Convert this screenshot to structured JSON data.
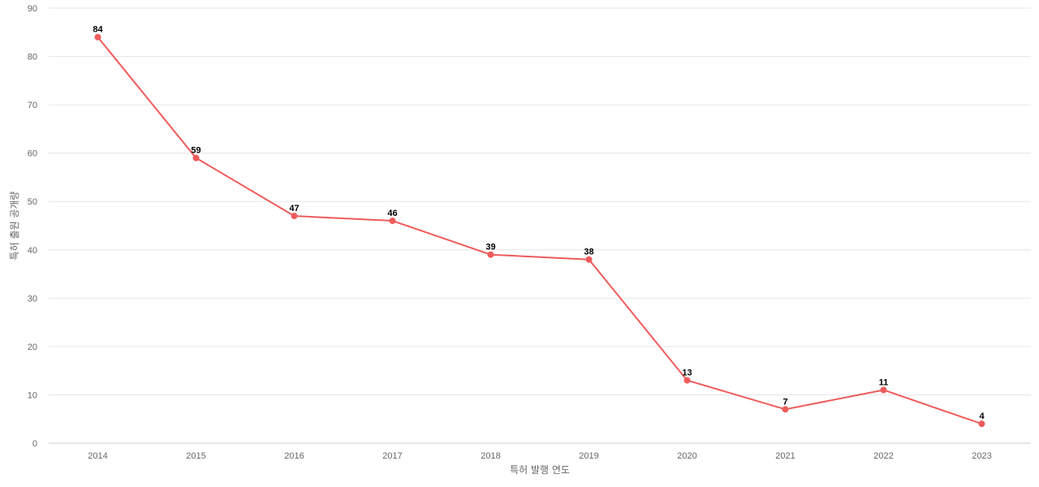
{
  "chart_data": {
    "type": "line",
    "title": "",
    "xlabel": "특허 발행 연도",
    "ylabel": "특허 출원 공개량",
    "categories": [
      "2014",
      "2015",
      "2016",
      "2017",
      "2018",
      "2019",
      "2020",
      "2021",
      "2022",
      "2023"
    ],
    "series": [
      {
        "values": [
          84,
          59,
          47,
          46,
          39,
          38,
          13,
          7,
          11,
          4
        ],
        "color": "#ef5b5b"
      }
    ],
    "ylim": [
      0,
      90
    ],
    "yticks": [
      0,
      10,
      20,
      30,
      40,
      50,
      60,
      70,
      80,
      90
    ],
    "grid": true,
    "data_labels": true,
    "legend": "none"
  }
}
